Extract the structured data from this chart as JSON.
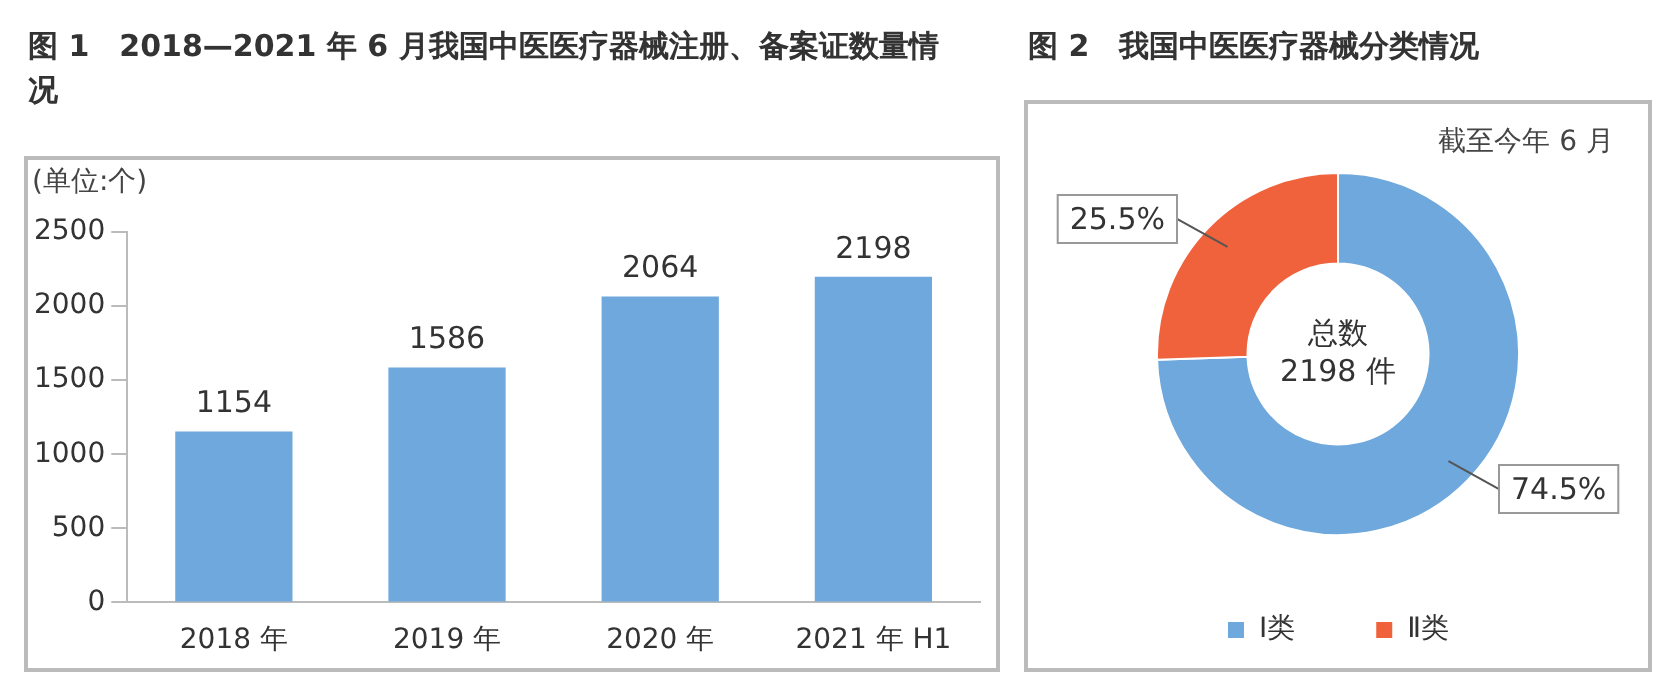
{
  "chart_data": [
    {
      "type": "bar",
      "title": "图 1　2018—2021 年 6 月我国中医医疗器械注册、备案证数量情况",
      "ylabel": "(单位:个)",
      "categories": [
        "2018 年",
        "2019 年",
        "2020 年",
        "2021 年 H1"
      ],
      "values": [
        1154,
        1586,
        2064,
        2198
      ],
      "color": "#6fa8dc",
      "ylim": [
        0,
        2500
      ],
      "yticks": [
        0,
        500,
        1000,
        1500,
        2000,
        2500
      ],
      "grid": false,
      "data_labels": true,
      "legend": false
    },
    {
      "type": "donut",
      "title": "图 2　我国中医医疗器械分类情况",
      "categories": [
        "Ⅰ类",
        "Ⅱ类"
      ],
      "values": [
        74.5,
        25.5
      ],
      "colors": [
        "#6fa8dc",
        "#f0623c"
      ],
      "value_labels": [
        "74.5%",
        "25.5%"
      ],
      "legend": "bottom",
      "annotations": [
        "截至今年 6 月",
        "总数",
        "2198 件"
      ]
    }
  ]
}
